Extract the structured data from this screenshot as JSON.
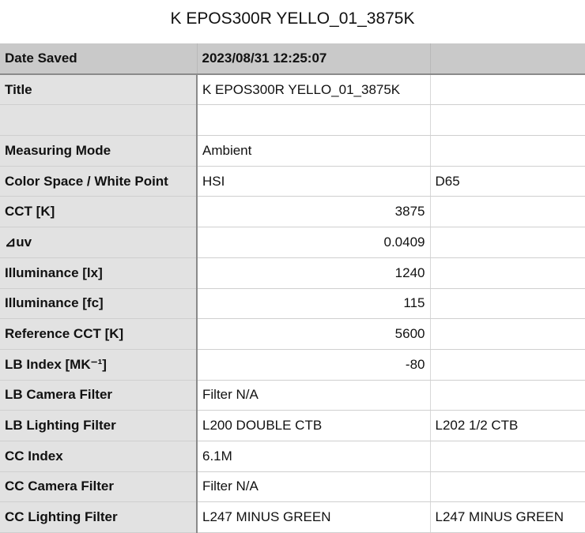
{
  "title": "K EPOS300R YELLO_01_3875K",
  "header": {
    "label": "Date Saved",
    "value": "2023/08/31 12:25:07",
    "extra": ""
  },
  "rows": [
    {
      "label": "Title",
      "value": "K EPOS300R YELLO_01_3875K",
      "extra": "",
      "numeric": false
    },
    {
      "label": "",
      "value": "",
      "extra": "",
      "numeric": false
    },
    {
      "label": "Measuring Mode",
      "value": "Ambient",
      "extra": "",
      "numeric": false
    },
    {
      "label": "Color Space / White Point",
      "value": "HSI",
      "extra": "D65",
      "numeric": false
    },
    {
      "label": "CCT [K]",
      "value": "3875",
      "extra": "",
      "numeric": true
    },
    {
      "label": "⊿uv",
      "value": "0.0409",
      "extra": "",
      "numeric": true
    },
    {
      "label": "Illuminance [lx]",
      "value": "1240",
      "extra": "",
      "numeric": true
    },
    {
      "label": "Illuminance [fc]",
      "value": "115",
      "extra": "",
      "numeric": true
    },
    {
      "label": "Reference CCT [K]",
      "value": "5600",
      "extra": "",
      "numeric": true
    },
    {
      "label": "LB Index [MK⁻¹]",
      "value": "-80",
      "extra": "",
      "numeric": true
    },
    {
      "label": "LB Camera Filter",
      "value": "Filter N/A",
      "extra": "",
      "numeric": false
    },
    {
      "label": "LB Lighting Filter",
      "value": "L200 DOUBLE CTB",
      "extra": "L202 1/2 CTB",
      "numeric": false
    },
    {
      "label": "CC Index",
      "value": "6.1M",
      "extra": "",
      "numeric": false
    },
    {
      "label": "CC Camera Filter",
      "value": "Filter N/A",
      "extra": "",
      "numeric": false
    },
    {
      "label": "CC Lighting Filter",
      "value": "L247 MINUS GREEN",
      "extra": "L247 MINUS GREEN",
      "numeric": false
    }
  ]
}
